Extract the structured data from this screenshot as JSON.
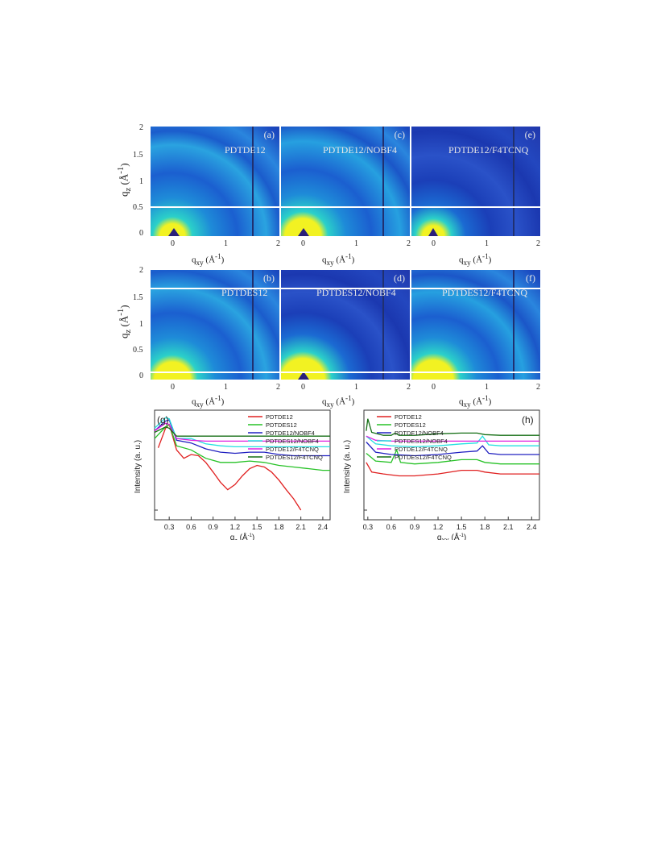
{
  "figure": {
    "maps_axis": {
      "qz_label": "q",
      "qz_sub": "z",
      "qz_unit": "(Å",
      "qz_exp": "-1",
      "qz_close": ")",
      "qxy_label": "q",
      "qxy_sub": "xy",
      "qxy_unit": "(Å",
      "qxy_exp": "-1",
      "qxy_close": ")",
      "qz_ticks": [
        "2",
        "1.5",
        "1",
        "0.5",
        "0"
      ],
      "qxy_ticks": [
        "0",
        "1",
        "2"
      ]
    },
    "panels": [
      {
        "tag": "(a)",
        "name": "PDTDE12"
      },
      {
        "tag": "(c)",
        "name": "PDTDE12/NOBF4"
      },
      {
        "tag": "(e)",
        "name": "PDTDE12/F4TCNQ"
      },
      {
        "tag": "(b)",
        "name": "PDTDES12"
      },
      {
        "tag": "(d)",
        "name": "PDTDES12/NOBF4"
      },
      {
        "tag": "(f)",
        "name": "PDTDES12/F4TCNQ"
      }
    ],
    "colors": {
      "red": "#e02020",
      "green": "#27c227",
      "blue": "#2020c0",
      "cyan": "#25e0e0",
      "magenta": "#e020e0",
      "darkgreen": "#146e14",
      "map_bg": "#1f2a9a",
      "map_glow": "#f2f222"
    }
  },
  "chart_data": [
    {
      "type": "line",
      "tag": "(g)",
      "xlabel": "q",
      "xlabel_sub": "z",
      "xlabel_unit": "(Å",
      "xlabel_exp": "-1",
      "xlabel_close": ")",
      "ylabel": "Intensity (a. u.)",
      "xlim": [
        0.1,
        2.5
      ],
      "x_ticks": [
        "0.3",
        "0.6",
        "0.9",
        "1.2",
        "1.5",
        "1.8",
        "2.1",
        "2.4"
      ],
      "y_scale": "log",
      "legend_position": "top-right",
      "series": [
        {
          "name": "PDTDE12",
          "color": "#e02020",
          "x": [
            0.15,
            0.25,
            0.3,
            0.4,
            0.5,
            0.6,
            0.7,
            0.8,
            0.9,
            1.0,
            1.1,
            1.2,
            1.3,
            1.4,
            1.5,
            1.6,
            1.7,
            1.8,
            1.9,
            2.0,
            2.1
          ],
          "y": [
            0.42,
            0.66,
            0.72,
            0.4,
            0.33,
            0.36,
            0.35,
            0.3,
            0.24,
            0.19,
            0.16,
            0.18,
            0.22,
            0.26,
            0.28,
            0.27,
            0.24,
            0.2,
            0.16,
            0.13,
            0.1
          ]
        },
        {
          "name": "PDTDES12",
          "color": "#27c227",
          "x": [
            0.1,
            0.25,
            0.3,
            0.4,
            0.6,
            0.8,
            1.0,
            1.2,
            1.4,
            1.6,
            1.8,
            2.0,
            2.2,
            2.4,
            2.5
          ],
          "y": [
            0.52,
            0.68,
            0.72,
            0.44,
            0.4,
            0.33,
            0.3,
            0.3,
            0.31,
            0.3,
            0.28,
            0.27,
            0.26,
            0.25,
            0.25
          ]
        },
        {
          "name": "PDTDE12/NOBF4",
          "color": "#2020c0",
          "x": [
            0.1,
            0.25,
            0.3,
            0.4,
            0.6,
            0.8,
            1.0,
            1.2,
            1.4,
            1.6,
            1.8,
            2.0,
            2.2,
            2.4,
            2.5
          ],
          "y": [
            0.62,
            0.78,
            0.8,
            0.5,
            0.47,
            0.41,
            0.38,
            0.37,
            0.38,
            0.38,
            0.36,
            0.35,
            0.35,
            0.35,
            0.35
          ]
        },
        {
          "name": "PDTDES12/NOBF4",
          "color": "#25e0e0",
          "x": [
            0.1,
            0.25,
            0.3,
            0.4,
            0.6,
            0.8,
            1.0,
            1.2,
            1.4,
            1.6,
            1.8,
            2.0,
            2.2,
            2.4,
            2.5
          ],
          "y": [
            0.66,
            0.84,
            0.82,
            0.52,
            0.52,
            0.46,
            0.44,
            0.43,
            0.43,
            0.43,
            0.43,
            0.43,
            0.43,
            0.43,
            0.43
          ]
        },
        {
          "name": "PDTDE12/F4TCNQ",
          "color": "#e020e0",
          "x": [
            0.1,
            0.25,
            0.3,
            0.4,
            0.6,
            0.8,
            1.0,
            1.4,
            1.8,
            2.2,
            2.5
          ],
          "y": [
            0.62,
            0.74,
            0.72,
            0.52,
            0.5,
            0.49,
            0.49,
            0.49,
            0.49,
            0.49,
            0.49
          ]
        },
        {
          "name": "PDTDES12/F4TCNQ",
          "color": "#146e14",
          "x": [
            0.1,
            0.25,
            0.3,
            0.4,
            0.6,
            0.8,
            1.0,
            1.4,
            1.8,
            2.2,
            2.5
          ],
          "y": [
            0.6,
            0.68,
            0.66,
            0.55,
            0.55,
            0.55,
            0.55,
            0.55,
            0.55,
            0.55,
            0.55
          ]
        }
      ]
    },
    {
      "type": "line",
      "tag": "(h)",
      "xlabel": "q",
      "xlabel_sub": "XY",
      "xlabel_unit": "(Å",
      "xlabel_exp": "-1",
      "xlabel_close": ")",
      "ylabel": "Intensity (a. u.)",
      "xlim": [
        0.25,
        2.5
      ],
      "x_ticks": [
        "0.3",
        "0.6",
        "0.9",
        "1.2",
        "1.5",
        "1.8",
        "2.1",
        "2.4"
      ],
      "y_scale": "log",
      "legend_position": "top-left",
      "series": [
        {
          "name": "PDTDE12",
          "color": "#e02020",
          "x": [
            0.28,
            0.35,
            0.5,
            0.7,
            0.9,
            1.2,
            1.5,
            1.7,
            1.8,
            2.0,
            2.2,
            2.5
          ],
          "y": [
            0.3,
            0.24,
            0.23,
            0.22,
            0.22,
            0.23,
            0.25,
            0.25,
            0.24,
            0.23,
            0.23,
            0.23
          ]
        },
        {
          "name": "PDTDES12",
          "color": "#27c227",
          "x": [
            0.28,
            0.4,
            0.6,
            0.67,
            0.72,
            0.9,
            1.2,
            1.5,
            1.7,
            1.8,
            2.0,
            2.2,
            2.5
          ],
          "y": [
            0.37,
            0.31,
            0.3,
            0.4,
            0.3,
            0.29,
            0.3,
            0.32,
            0.32,
            0.3,
            0.29,
            0.29,
            0.29
          ]
        },
        {
          "name": "PDTDE12/NOBF4",
          "color": "#2020c0",
          "x": [
            0.28,
            0.4,
            0.6,
            0.9,
            1.2,
            1.5,
            1.7,
            1.77,
            1.85,
            2.0,
            2.2,
            2.5
          ],
          "y": [
            0.48,
            0.38,
            0.36,
            0.35,
            0.36,
            0.38,
            0.39,
            0.44,
            0.37,
            0.36,
            0.36,
            0.36
          ]
        },
        {
          "name": "PDTDES12/NOBF4",
          "color": "#25e0e0",
          "x": [
            0.28,
            0.4,
            0.6,
            0.9,
            1.2,
            1.5,
            1.7,
            1.77,
            1.85,
            2.0,
            2.2,
            2.5
          ],
          "y": [
            0.55,
            0.46,
            0.44,
            0.43,
            0.44,
            0.46,
            0.47,
            0.55,
            0.45,
            0.44,
            0.44,
            0.44
          ]
        },
        {
          "name": "PDTDE12/F4TCNQ",
          "color": "#e020e0",
          "x": [
            0.28,
            0.4,
            0.6,
            0.9,
            1.2,
            1.5,
            1.8,
            2.1,
            2.5
          ],
          "y": [
            0.55,
            0.5,
            0.49,
            0.49,
            0.49,
            0.49,
            0.49,
            0.49,
            0.49
          ]
        },
        {
          "name": "PDTDES12/F4TCNQ",
          "color": "#146e14",
          "x": [
            0.28,
            0.3,
            0.35,
            0.5,
            0.6,
            0.65,
            0.7,
            0.9,
            1.2,
            1.5,
            1.7,
            1.8,
            2.0,
            2.2,
            2.5
          ],
          "y": [
            0.62,
            0.82,
            0.6,
            0.56,
            0.56,
            0.59,
            0.56,
            0.56,
            0.58,
            0.59,
            0.59,
            0.57,
            0.56,
            0.56,
            0.56
          ]
        }
      ]
    }
  ]
}
